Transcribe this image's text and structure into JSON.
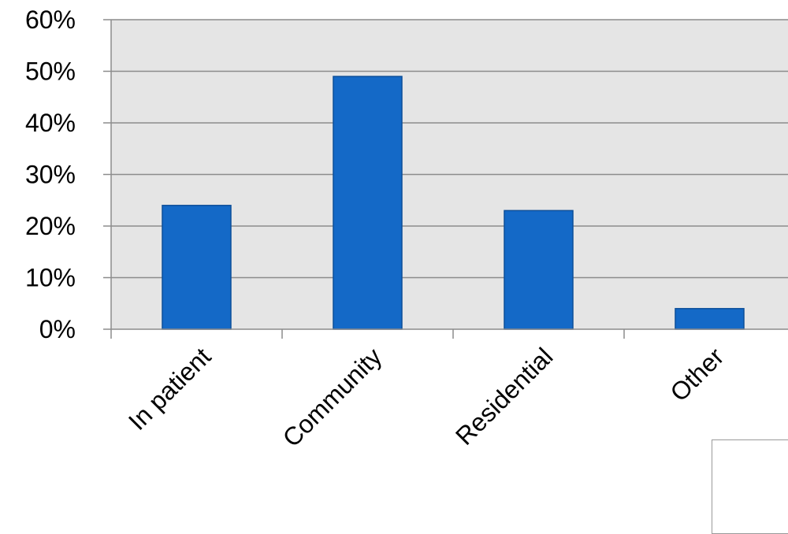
{
  "chart_data": {
    "type": "bar",
    "categories": [
      "In patient",
      "Community",
      "Residential",
      "Other"
    ],
    "values": [
      24,
      49,
      23,
      4
    ],
    "value_format": "percent",
    "title": "",
    "xlabel": "",
    "ylabel": "",
    "ylim": [
      0,
      60
    ],
    "yticks": [
      0,
      10,
      20,
      30,
      40,
      50,
      60
    ],
    "ytick_labels": [
      "0%",
      "10%",
      "20%",
      "30%",
      "40%",
      "50%",
      "60%"
    ],
    "grid": true,
    "legend": "none",
    "colors": {
      "bar": "#1469c7",
      "bar_edge": "#0d4f99",
      "plot_background": "#e5e5e5",
      "gridline": "#8c8c8c",
      "axis": "#8c8c8c"
    }
  }
}
